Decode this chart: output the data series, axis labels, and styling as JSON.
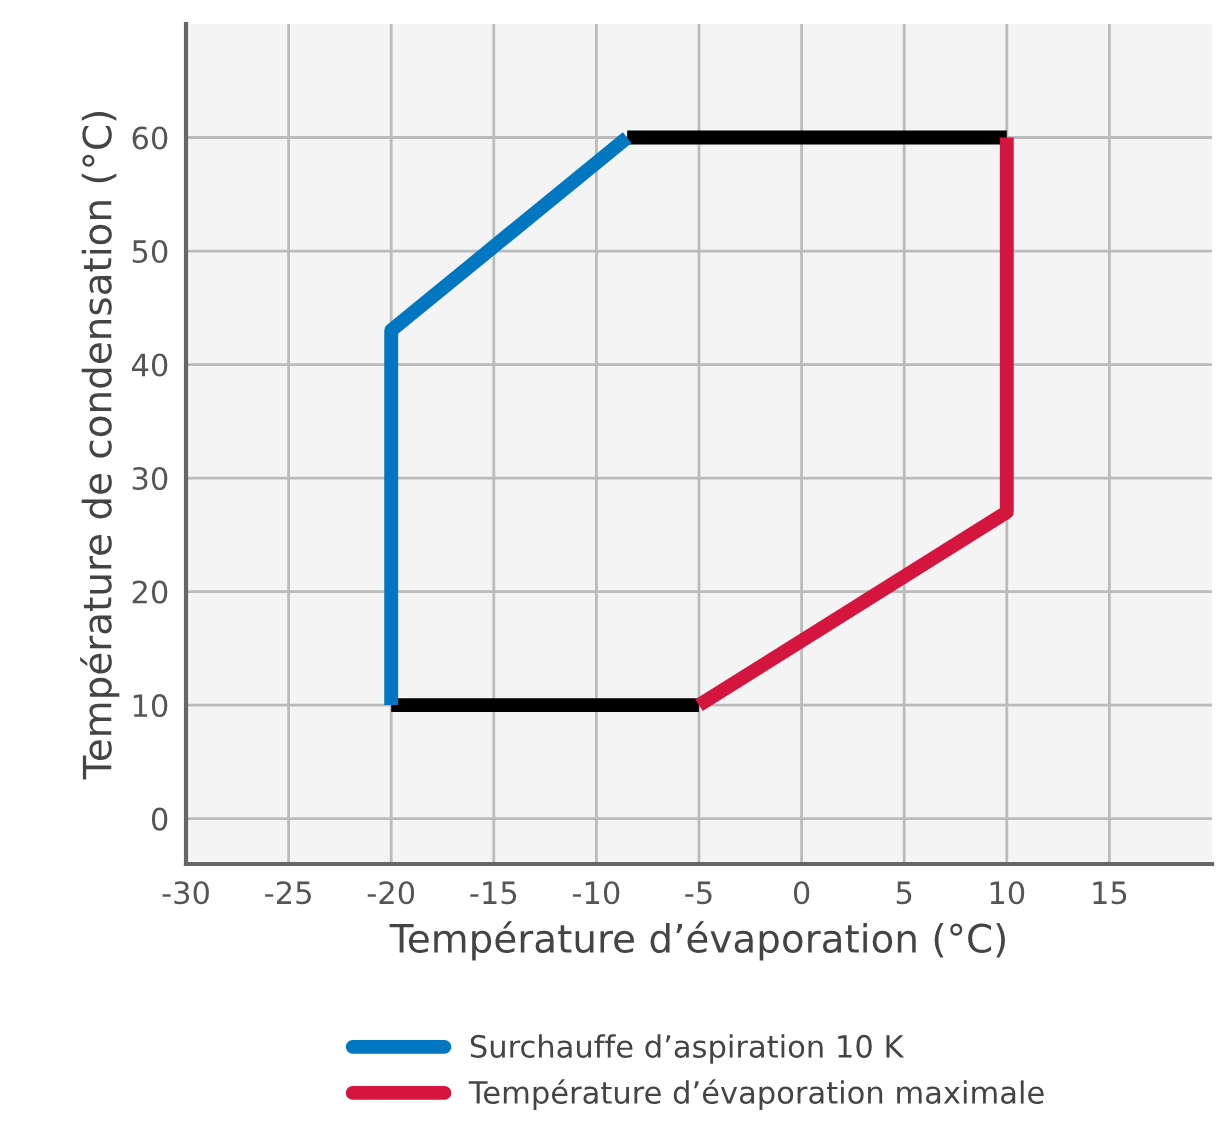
{
  "chart_data": {
    "type": "line",
    "xlabel": "Température d’évaporation (°C)",
    "ylabel": "Température de condensation (°C)",
    "series": [
      {
        "name": null,
        "color": "#000000",
        "x": [
          -8.5,
          10,
          null,
          -20,
          -5
        ],
        "values": [
          60,
          60,
          null,
          10,
          10
        ]
      },
      {
        "name": "Surchauffe d’aspiration 10 K",
        "color": "#0077c0",
        "x": [
          -20,
          -20,
          -8.5
        ],
        "values": [
          10,
          43,
          60
        ]
      },
      {
        "name": "Température d’évaporation maximale",
        "color": "#d4163f",
        "x": [
          10,
          10,
          -5
        ],
        "values": [
          60,
          27,
          10
        ]
      }
    ],
    "xlim": [
      -30,
      20
    ],
    "xticks": [
      -30,
      -25,
      -20,
      -15,
      -10,
      -5,
      0,
      5,
      10,
      15
    ],
    "ylim": [
      -4,
      70
    ],
    "yticks": [
      0,
      10,
      20,
      30,
      40,
      50,
      60
    ],
    "grid": true,
    "legend": "bottom",
    "marker": "none",
    "line_style": "solid"
  }
}
